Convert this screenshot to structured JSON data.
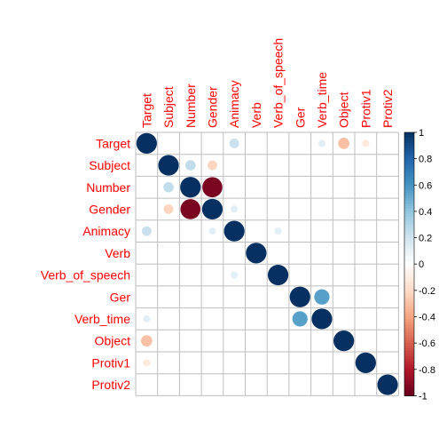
{
  "chart_data": {
    "type": "heatmap",
    "variables": [
      "Target",
      "Subject",
      "Number",
      "Gender",
      "Animacy",
      "Verb",
      "Verb_of_speech",
      "Ger",
      "Verb_time",
      "Object",
      "Protiv1",
      "Protiv2"
    ],
    "matrix": [
      [
        1,
        0,
        0,
        0,
        0.22,
        0,
        0,
        0,
        0.12,
        -0.3,
        -0.12,
        0
      ],
      [
        0,
        1,
        0.25,
        -0.22,
        0,
        0,
        0,
        0,
        0,
        0,
        0,
        0
      ],
      [
        0,
        0.25,
        1,
        -0.95,
        0,
        0,
        0,
        0,
        0,
        0,
        0,
        0
      ],
      [
        0,
        -0.22,
        -0.95,
        1,
        0.12,
        0,
        0,
        0,
        0,
        0,
        0,
        0
      ],
      [
        0.22,
        0,
        0,
        0.12,
        1,
        0,
        0.12,
        0,
        0,
        0,
        0,
        0
      ],
      [
        0,
        0,
        0,
        0,
        0,
        1,
        0,
        0,
        0,
        0,
        0,
        0
      ],
      [
        0,
        0,
        0,
        0,
        0.12,
        0,
        1,
        0,
        0,
        0,
        0,
        0
      ],
      [
        0,
        0,
        0,
        0,
        0,
        0,
        0,
        1,
        0.55,
        0,
        0,
        0
      ],
      [
        0.12,
        0,
        0,
        0,
        0,
        0,
        0,
        0.55,
        1,
        0,
        0,
        0
      ],
      [
        -0.3,
        0,
        0,
        0,
        0,
        0,
        0,
        0,
        0,
        1,
        0,
        0
      ],
      [
        -0.12,
        0,
        0,
        0,
        0,
        0,
        0,
        0,
        0,
        0,
        1,
        0
      ],
      [
        0,
        0,
        0,
        0,
        0,
        0,
        0,
        0,
        0,
        0,
        0,
        1
      ]
    ],
    "colorbar": {
      "range": [
        -1,
        1
      ],
      "ticks": [
        "-1",
        "-0.8",
        "-0.6",
        "-0.4",
        "-0.2",
        "0",
        "0.2",
        "0.4",
        "0.6",
        "0.8",
        "1"
      ]
    },
    "label_color": "#ff0000",
    "grid_color": "#bebebe",
    "palette": [
      "#67001f",
      "#b2182b",
      "#d6604d",
      "#f4a582",
      "#fddbc7",
      "#ffffff",
      "#d1e5f0",
      "#92c5de",
      "#4393c3",
      "#2166ac",
      "#053061"
    ]
  }
}
